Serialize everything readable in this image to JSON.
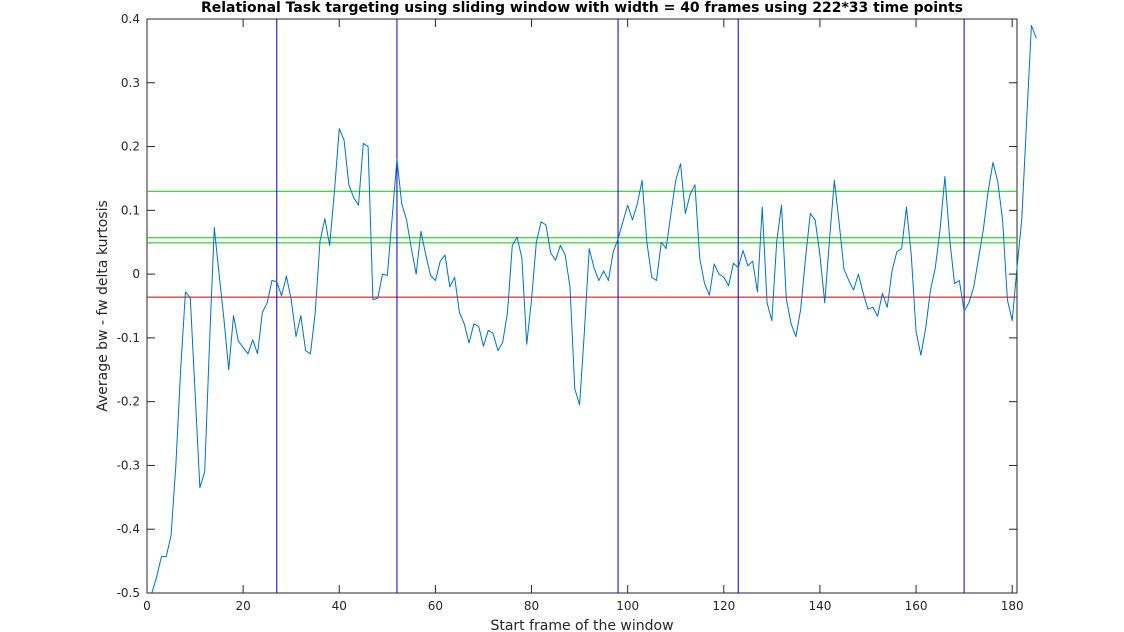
{
  "chart_data": {
    "type": "line",
    "title": "Relational Task targeting using sliding window with width = 40 frames using 222*33 time points",
    "xlabel": "Start frame of the window",
    "ylabel": "Average bw - fw delta kurtosis",
    "xlim": [
      0,
      181
    ],
    "ylim": [
      -0.5,
      0.4
    ],
    "xticks": [
      0,
      20,
      40,
      60,
      80,
      100,
      120,
      140,
      160,
      180
    ],
    "yticks": [
      -0.5,
      -0.4,
      -0.3,
      -0.2,
      -0.1,
      0,
      0.1,
      0.2,
      0.3,
      0.4
    ],
    "grid": false,
    "legend": "none",
    "series": [
      {
        "color": "#0072bd",
        "x_start": 1,
        "values": [
          -0.5,
          -0.475,
          -0.443,
          -0.443,
          -0.41,
          -0.3,
          -0.15,
          -0.028,
          -0.037,
          -0.185,
          -0.335,
          -0.31,
          -0.11,
          0.073,
          0.0,
          -0.07,
          -0.15,
          -0.065,
          -0.105,
          -0.115,
          -0.125,
          -0.103,
          -0.125,
          -0.06,
          -0.045,
          -0.01,
          -0.012,
          -0.034,
          -0.003,
          -0.04,
          -0.098,
          -0.065,
          -0.12,
          -0.125,
          -0.06,
          0.052,
          0.087,
          0.045,
          0.13,
          0.228,
          0.21,
          0.14,
          0.12,
          0.108,
          0.205,
          0.2,
          -0.04,
          -0.038,
          0.0,
          -0.002,
          0.088,
          0.18,
          0.11,
          0.085,
          0.04,
          0.0,
          0.067,
          0.03,
          -0.002,
          -0.01,
          0.02,
          0.03,
          -0.02,
          -0.005,
          -0.06,
          -0.078,
          -0.108,
          -0.078,
          -0.082,
          -0.113,
          -0.088,
          -0.093,
          -0.12,
          -0.107,
          -0.06,
          0.045,
          0.058,
          0.025,
          -0.11,
          -0.04,
          0.05,
          0.082,
          0.077,
          0.033,
          0.022,
          0.045,
          0.03,
          -0.02,
          -0.18,
          -0.205,
          -0.09,
          0.04,
          0.01,
          -0.01,
          0.005,
          -0.01,
          0.035,
          0.055,
          0.082,
          0.108,
          0.085,
          0.11,
          0.147,
          0.05,
          -0.005,
          -0.01,
          0.05,
          0.04,
          0.095,
          0.147,
          0.173,
          0.095,
          0.125,
          0.14,
          0.025,
          -0.015,
          -0.033,
          0.016,
          0.0,
          -0.005,
          -0.018,
          0.017,
          0.01,
          0.037,
          0.013,
          0.02,
          -0.028,
          0.105,
          -0.045,
          -0.073,
          0.05,
          0.108,
          -0.038,
          -0.078,
          -0.098,
          -0.055,
          0.025,
          0.095,
          0.085,
          0.03,
          -0.045,
          0.055,
          0.147,
          0.08,
          0.008,
          -0.01,
          -0.025,
          0.0,
          -0.03,
          -0.055,
          -0.052,
          -0.066,
          -0.03,
          -0.052,
          0.005,
          0.035,
          0.04,
          0.105,
          0.03,
          -0.09,
          -0.127,
          -0.085,
          -0.025,
          0.01,
          0.07,
          0.153,
          0.055,
          -0.015,
          -0.01,
          -0.058,
          -0.045,
          -0.02,
          0.025,
          0.07,
          0.13,
          0.175,
          0.145,
          0.085,
          -0.04,
          -0.073,
          0.01,
          0.087,
          0.24,
          0.39,
          0.37
        ]
      }
    ],
    "vertical_lines": {
      "color": "#0000cc",
      "x": [
        27,
        52,
        98,
        123,
        170
      ]
    },
    "horizontal_lines": [
      {
        "color": "#00cc00",
        "y": 0.13
      },
      {
        "color": "#00cc00",
        "y": 0.057
      },
      {
        "color": "#00cc00",
        "y": 0.049
      },
      {
        "color": "#cc0000",
        "y": -0.036
      }
    ]
  }
}
